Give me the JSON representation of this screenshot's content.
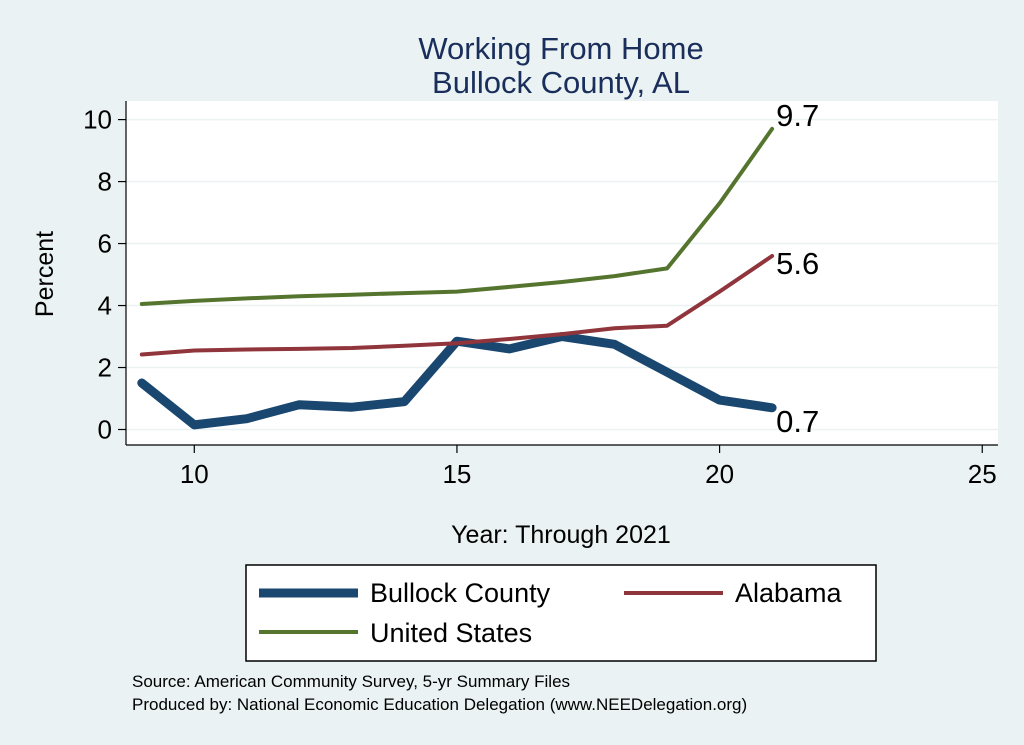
{
  "chart_data": {
    "type": "line",
    "title": [
      "Working From Home",
      "Bullock County, AL"
    ],
    "xlabel": "Year: Through 2021",
    "ylabel": "Percent",
    "xlim": [
      8.7,
      25.3
    ],
    "ylim": [
      -0.5,
      10.6
    ],
    "xticks": [
      10,
      15,
      20,
      25
    ],
    "yticks": [
      0,
      2,
      4,
      6,
      8,
      10
    ],
    "grid": true,
    "legend_position": "bottom",
    "series": [
      {
        "name": "Bullock County",
        "color": "#1a476f",
        "x": [
          9,
          10,
          11,
          12,
          13,
          14,
          15,
          16,
          17,
          18,
          19,
          20,
          21
        ],
        "values": [
          1.5,
          0.15,
          0.35,
          0.8,
          0.72,
          0.9,
          2.85,
          2.6,
          3.0,
          2.75,
          1.85,
          0.95,
          0.7
        ],
        "end_label": "0.7"
      },
      {
        "name": "Alabama",
        "color": "#90353b",
        "x": [
          9,
          10,
          11,
          12,
          13,
          14,
          15,
          16,
          17,
          18,
          19,
          20,
          21
        ],
        "values": [
          2.42,
          2.55,
          2.58,
          2.6,
          2.63,
          2.7,
          2.78,
          2.92,
          3.08,
          3.27,
          3.35,
          4.45,
          5.6
        ],
        "end_label": "5.6"
      },
      {
        "name": "United States",
        "color": "#55752f",
        "x": [
          9,
          10,
          11,
          12,
          13,
          14,
          15,
          16,
          17,
          18,
          19,
          20,
          21
        ],
        "values": [
          4.05,
          4.15,
          4.23,
          4.3,
          4.35,
          4.4,
          4.45,
          4.6,
          4.76,
          4.95,
          5.2,
          7.3,
          9.7
        ],
        "end_label": "9.7"
      }
    ]
  },
  "notes": [
    "Source: American Community Survey, 5-yr Summary Files",
    "Produced by: National Economic Education Delegation (www.NEEDelegation.org)"
  ]
}
